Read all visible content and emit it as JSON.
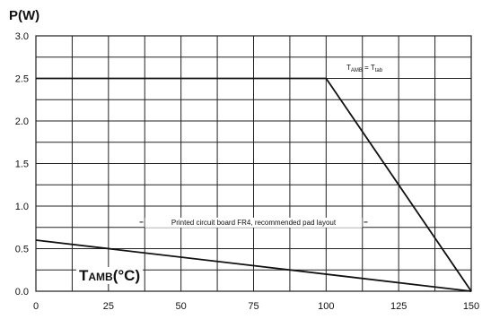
{
  "chart_data": {
    "type": "line",
    "ylabel": "P(W)",
    "xlabel_main": "T",
    "xlabel_sub": "AMB",
    "xlabel_unit": "(°C)",
    "xlim": [
      0,
      150
    ],
    "ylim": [
      0,
      3.0
    ],
    "grid": true,
    "x_ticks": [
      0,
      25,
      50,
      75,
      100,
      125,
      150
    ],
    "x_tick_labels": [
      "0",
      "25",
      "50",
      "75",
      "100",
      "125",
      "150"
    ],
    "y_ticks": [
      0,
      0.5,
      1.0,
      1.5,
      2.0,
      2.5,
      3.0
    ],
    "y_tick_labels": [
      "0.0",
      "0.5",
      "1.0",
      "1.5",
      "2.0",
      "2.5",
      "3.0"
    ],
    "series": [
      {
        "color": "#111111",
        "points": [
          [
            0,
            2.5
          ],
          [
            100,
            2.5
          ],
          [
            150,
            0
          ]
        ]
      },
      {
        "color": "#111111",
        "points": [
          [
            0,
            0.6
          ],
          [
            150,
            0
          ]
        ]
      }
    ],
    "annotations": [
      {
        "part1": "T",
        "sub1": "AMB",
        "eq": " = ",
        "part2": "T",
        "sub2": "tab",
        "x": 107,
        "y": 2.6
      },
      {
        "text": "Printed circuit board FR4, recommended pad layout",
        "x": 75,
        "y": 0.78
      }
    ]
  }
}
